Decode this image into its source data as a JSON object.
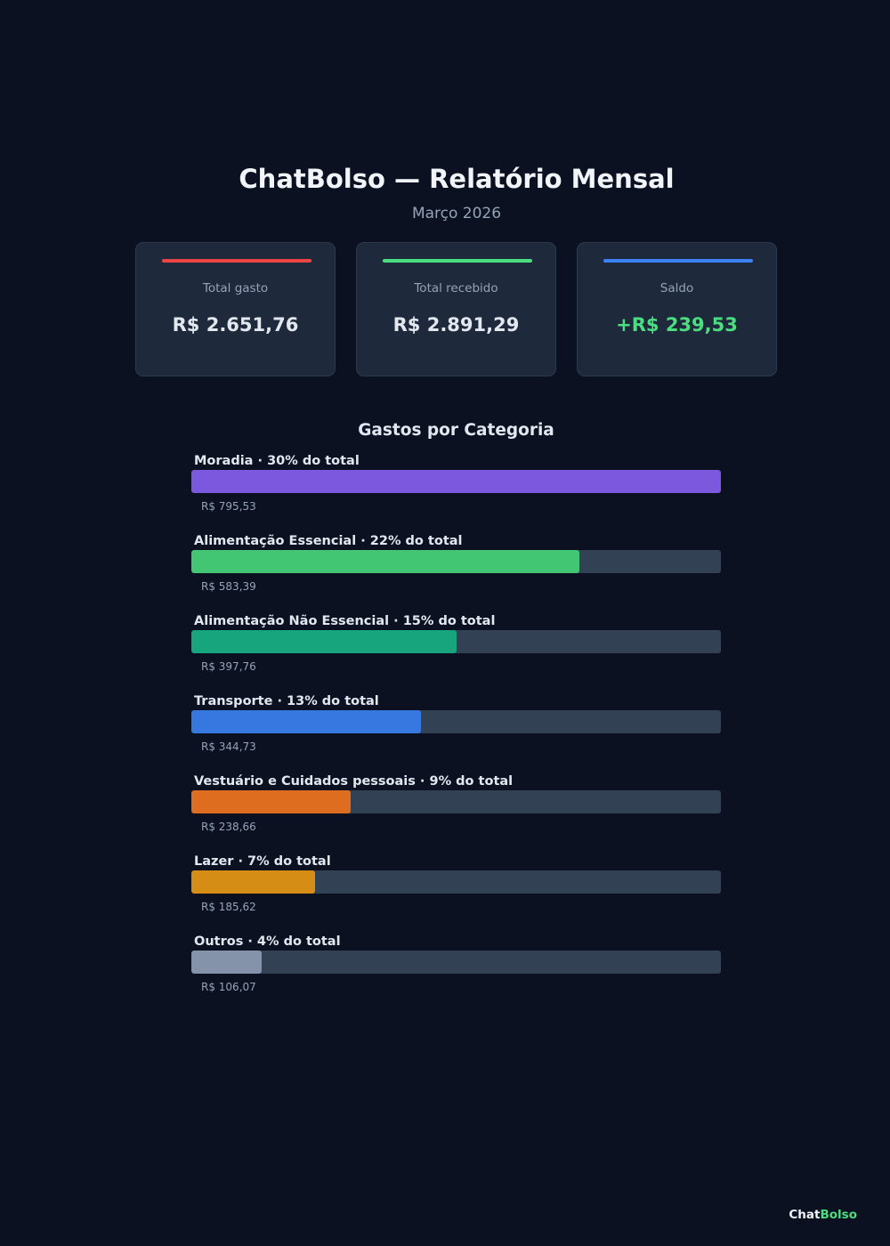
{
  "header": {
    "title": "ChatBolso — Relatório Mensal",
    "subtitle": "Março 2026"
  },
  "summary_cards": [
    {
      "label": "Total gasto",
      "value": "R$ 2.651,76",
      "accent_color": "#ef4444",
      "value_color": "#e2e8f0"
    },
    {
      "label": "Total recebido",
      "value": "R$ 2.891,29",
      "accent_color": "#4ade80",
      "value_color": "#e2e8f0"
    },
    {
      "label": "Saldo",
      "value": "+R$ 239,53",
      "accent_color": "#3b82f6",
      "value_color": "#4ade80"
    }
  ],
  "categories_section": {
    "title": "Gastos por Categoria",
    "items": [
      {
        "label": "Moradia · 30% do total",
        "amount": "R$ 795,53",
        "fill_fraction": 1.0,
        "color": "#7c58de"
      },
      {
        "label": "Alimentação Essencial · 22% do total",
        "amount": "R$ 583,39",
        "fill_fraction": 0.733,
        "color": "#43c674"
      },
      {
        "label": "Alimentação Não Essencial · 15% do total",
        "amount": "R$ 397,76",
        "fill_fraction": 0.5,
        "color": "#16a57c"
      },
      {
        "label": "Transporte · 13% do total",
        "amount": "R$ 344,73",
        "fill_fraction": 0.433,
        "color": "#3678df"
      },
      {
        "label": "Vestuário e Cuidados pessoais · 9% do total",
        "amount": "R$ 238,66",
        "fill_fraction": 0.3,
        "color": "#de6d1f"
      },
      {
        "label": "Lazer · 7% do total",
        "amount": "R$ 185,62",
        "fill_fraction": 0.233,
        "color": "#d68d16"
      },
      {
        "label": "Outros · 4% do total",
        "amount": "R$ 106,07",
        "fill_fraction": 0.133,
        "color": "#8493aa"
      }
    ]
  },
  "footer": {
    "brand_part1": "Chat",
    "brand_part2": "Bolso"
  }
}
